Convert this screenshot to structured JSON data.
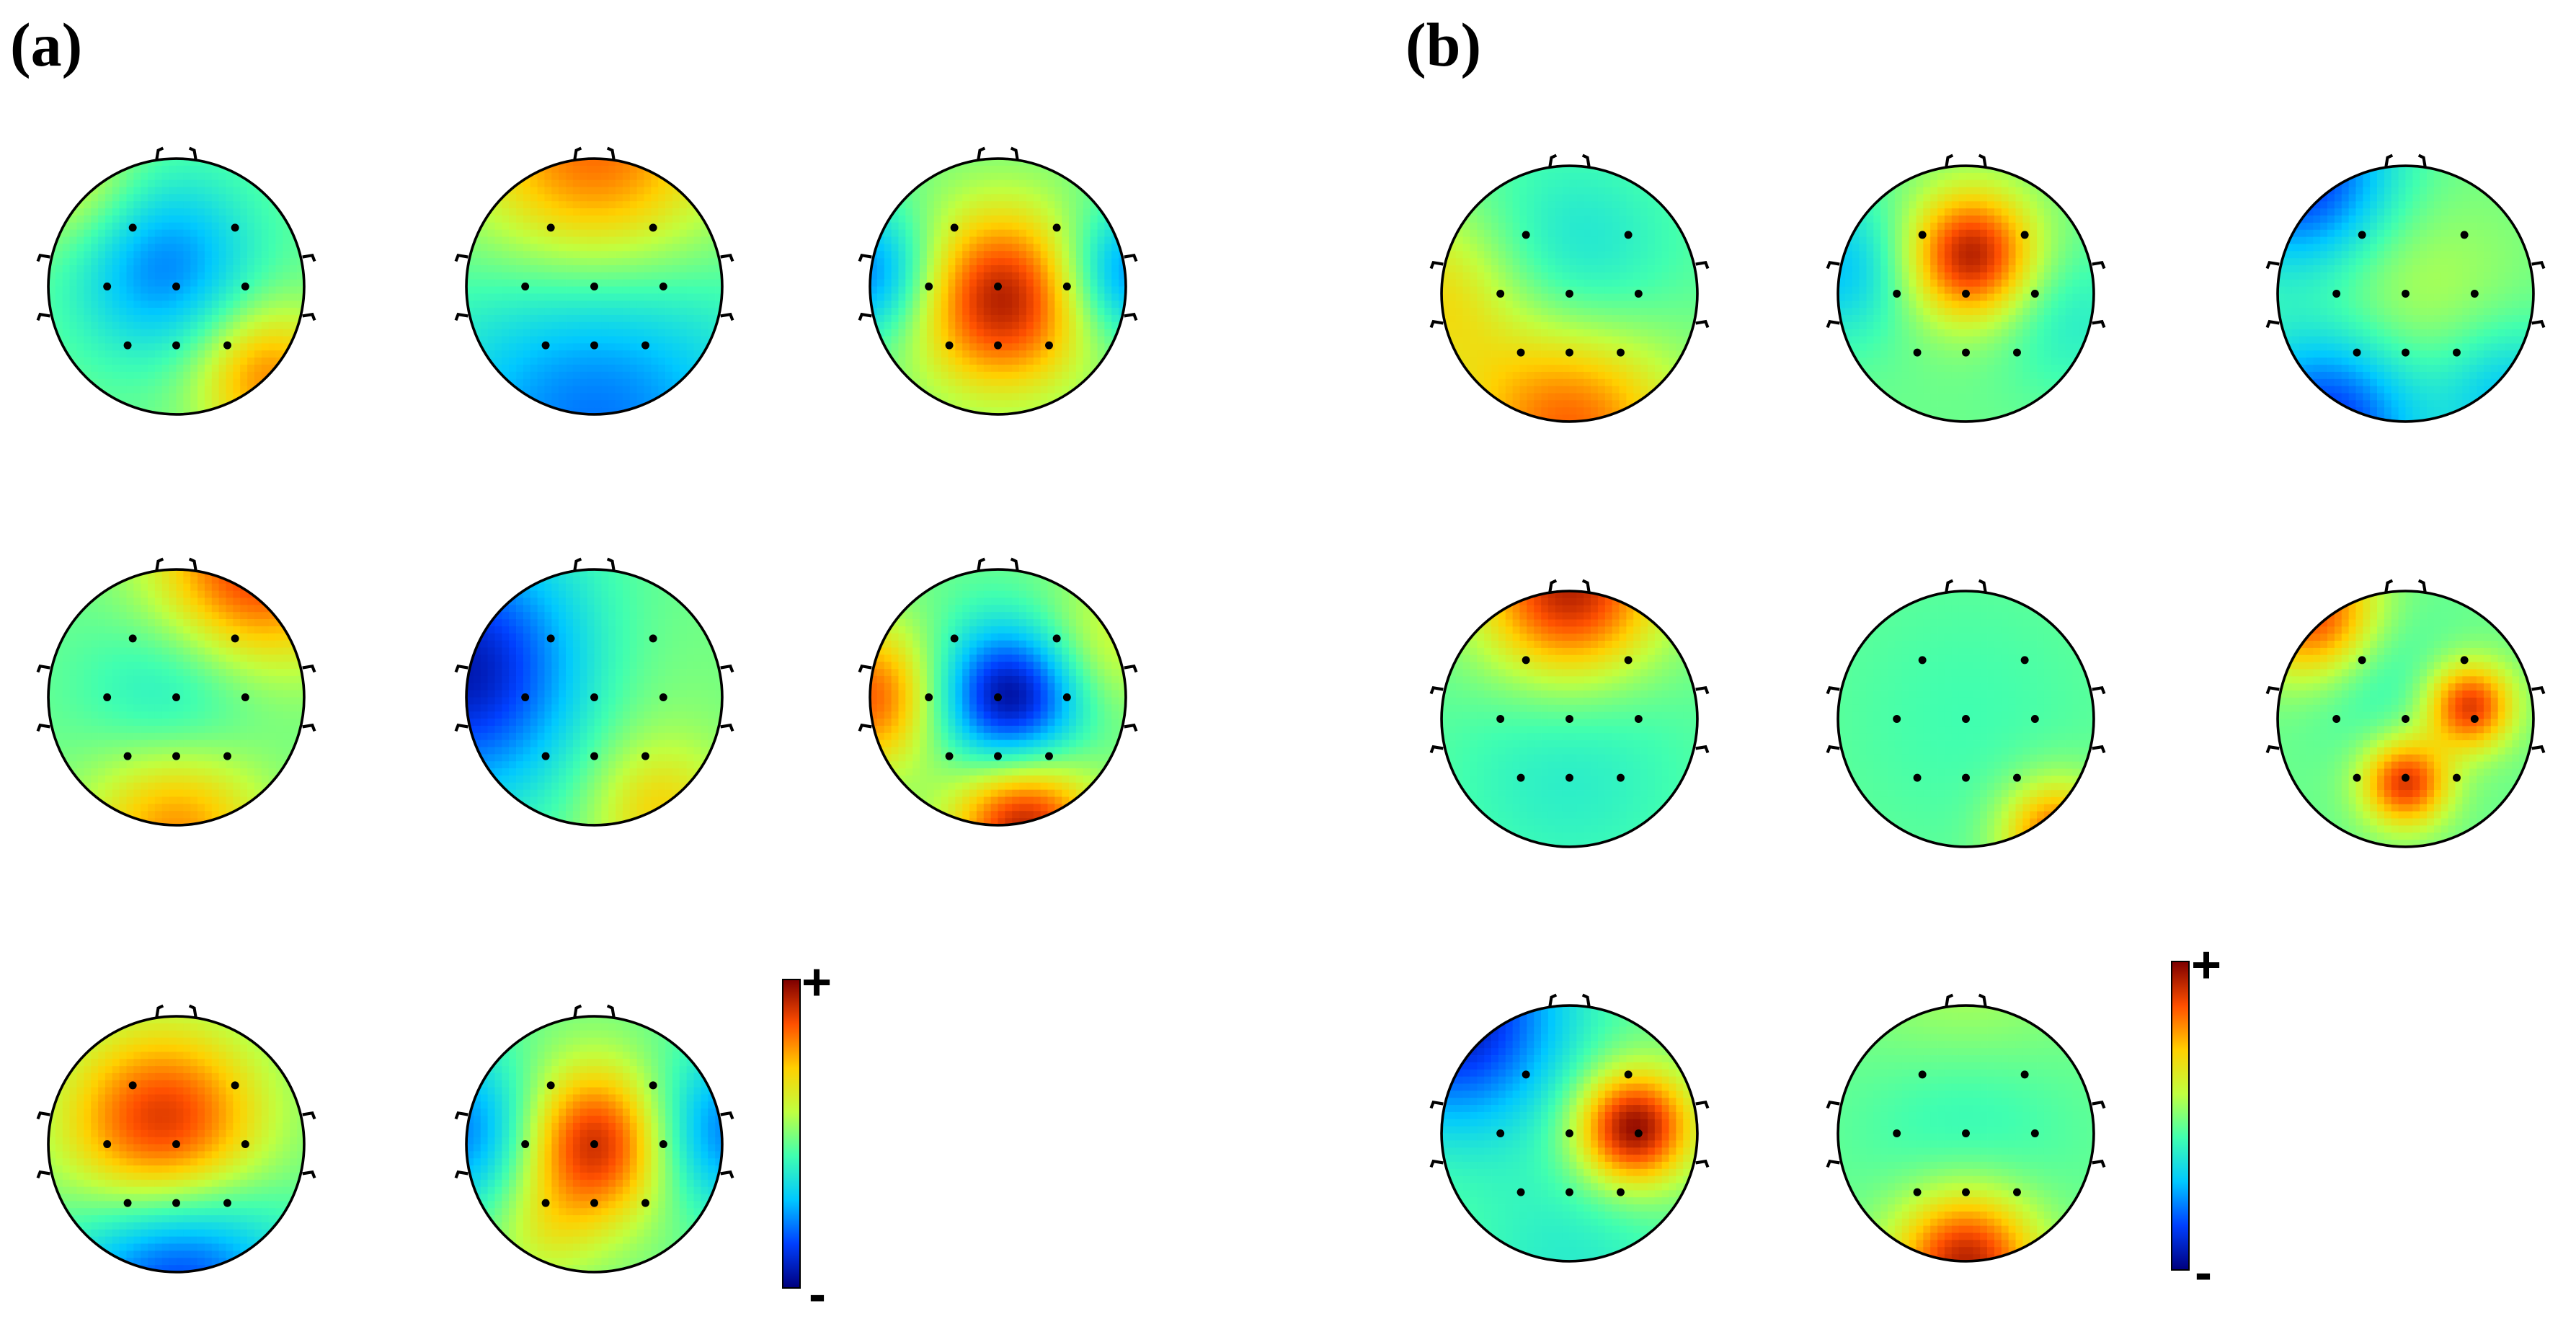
{
  "panels": [
    {
      "label": "(a)"
    },
    {
      "label": "(b)"
    }
  ],
  "colorbar": {
    "plus": "+",
    "minus": "-",
    "colors": [
      "#00007f",
      "#0040ff",
      "#00c8ff",
      "#40ffb0",
      "#c0ff40",
      "#ffd000",
      "#ff5000",
      "#7f0000"
    ]
  },
  "maps": [
    {
      "id": "a1",
      "pattern": "center-low-rim-high"
    },
    {
      "id": "a2",
      "pattern": "front-high-back-low"
    },
    {
      "id": "a3",
      "pattern": "central-high-sides-low"
    },
    {
      "id": "a4",
      "pattern": "front-right-high"
    },
    {
      "id": "a5",
      "pattern": "left-low-right-mid"
    },
    {
      "id": "a6",
      "pattern": "center-low-edges-high"
    },
    {
      "id": "a7",
      "pattern": "center-high-rim-low"
    },
    {
      "id": "a8",
      "pattern": "center-high-sides-low"
    },
    {
      "id": "b1",
      "pattern": "center-low-rim-high"
    },
    {
      "id": "b2",
      "pattern": "upper-center-high"
    },
    {
      "id": "b3",
      "pattern": "center-mid-rim-low"
    },
    {
      "id": "b4",
      "pattern": "front-high"
    },
    {
      "id": "b5",
      "pattern": "mostly-mid-back-right-high"
    },
    {
      "id": "b6",
      "pattern": "multi-peak"
    },
    {
      "id": "b7",
      "pattern": "right-center-high"
    },
    {
      "id": "b8",
      "pattern": "back-high"
    }
  ]
}
